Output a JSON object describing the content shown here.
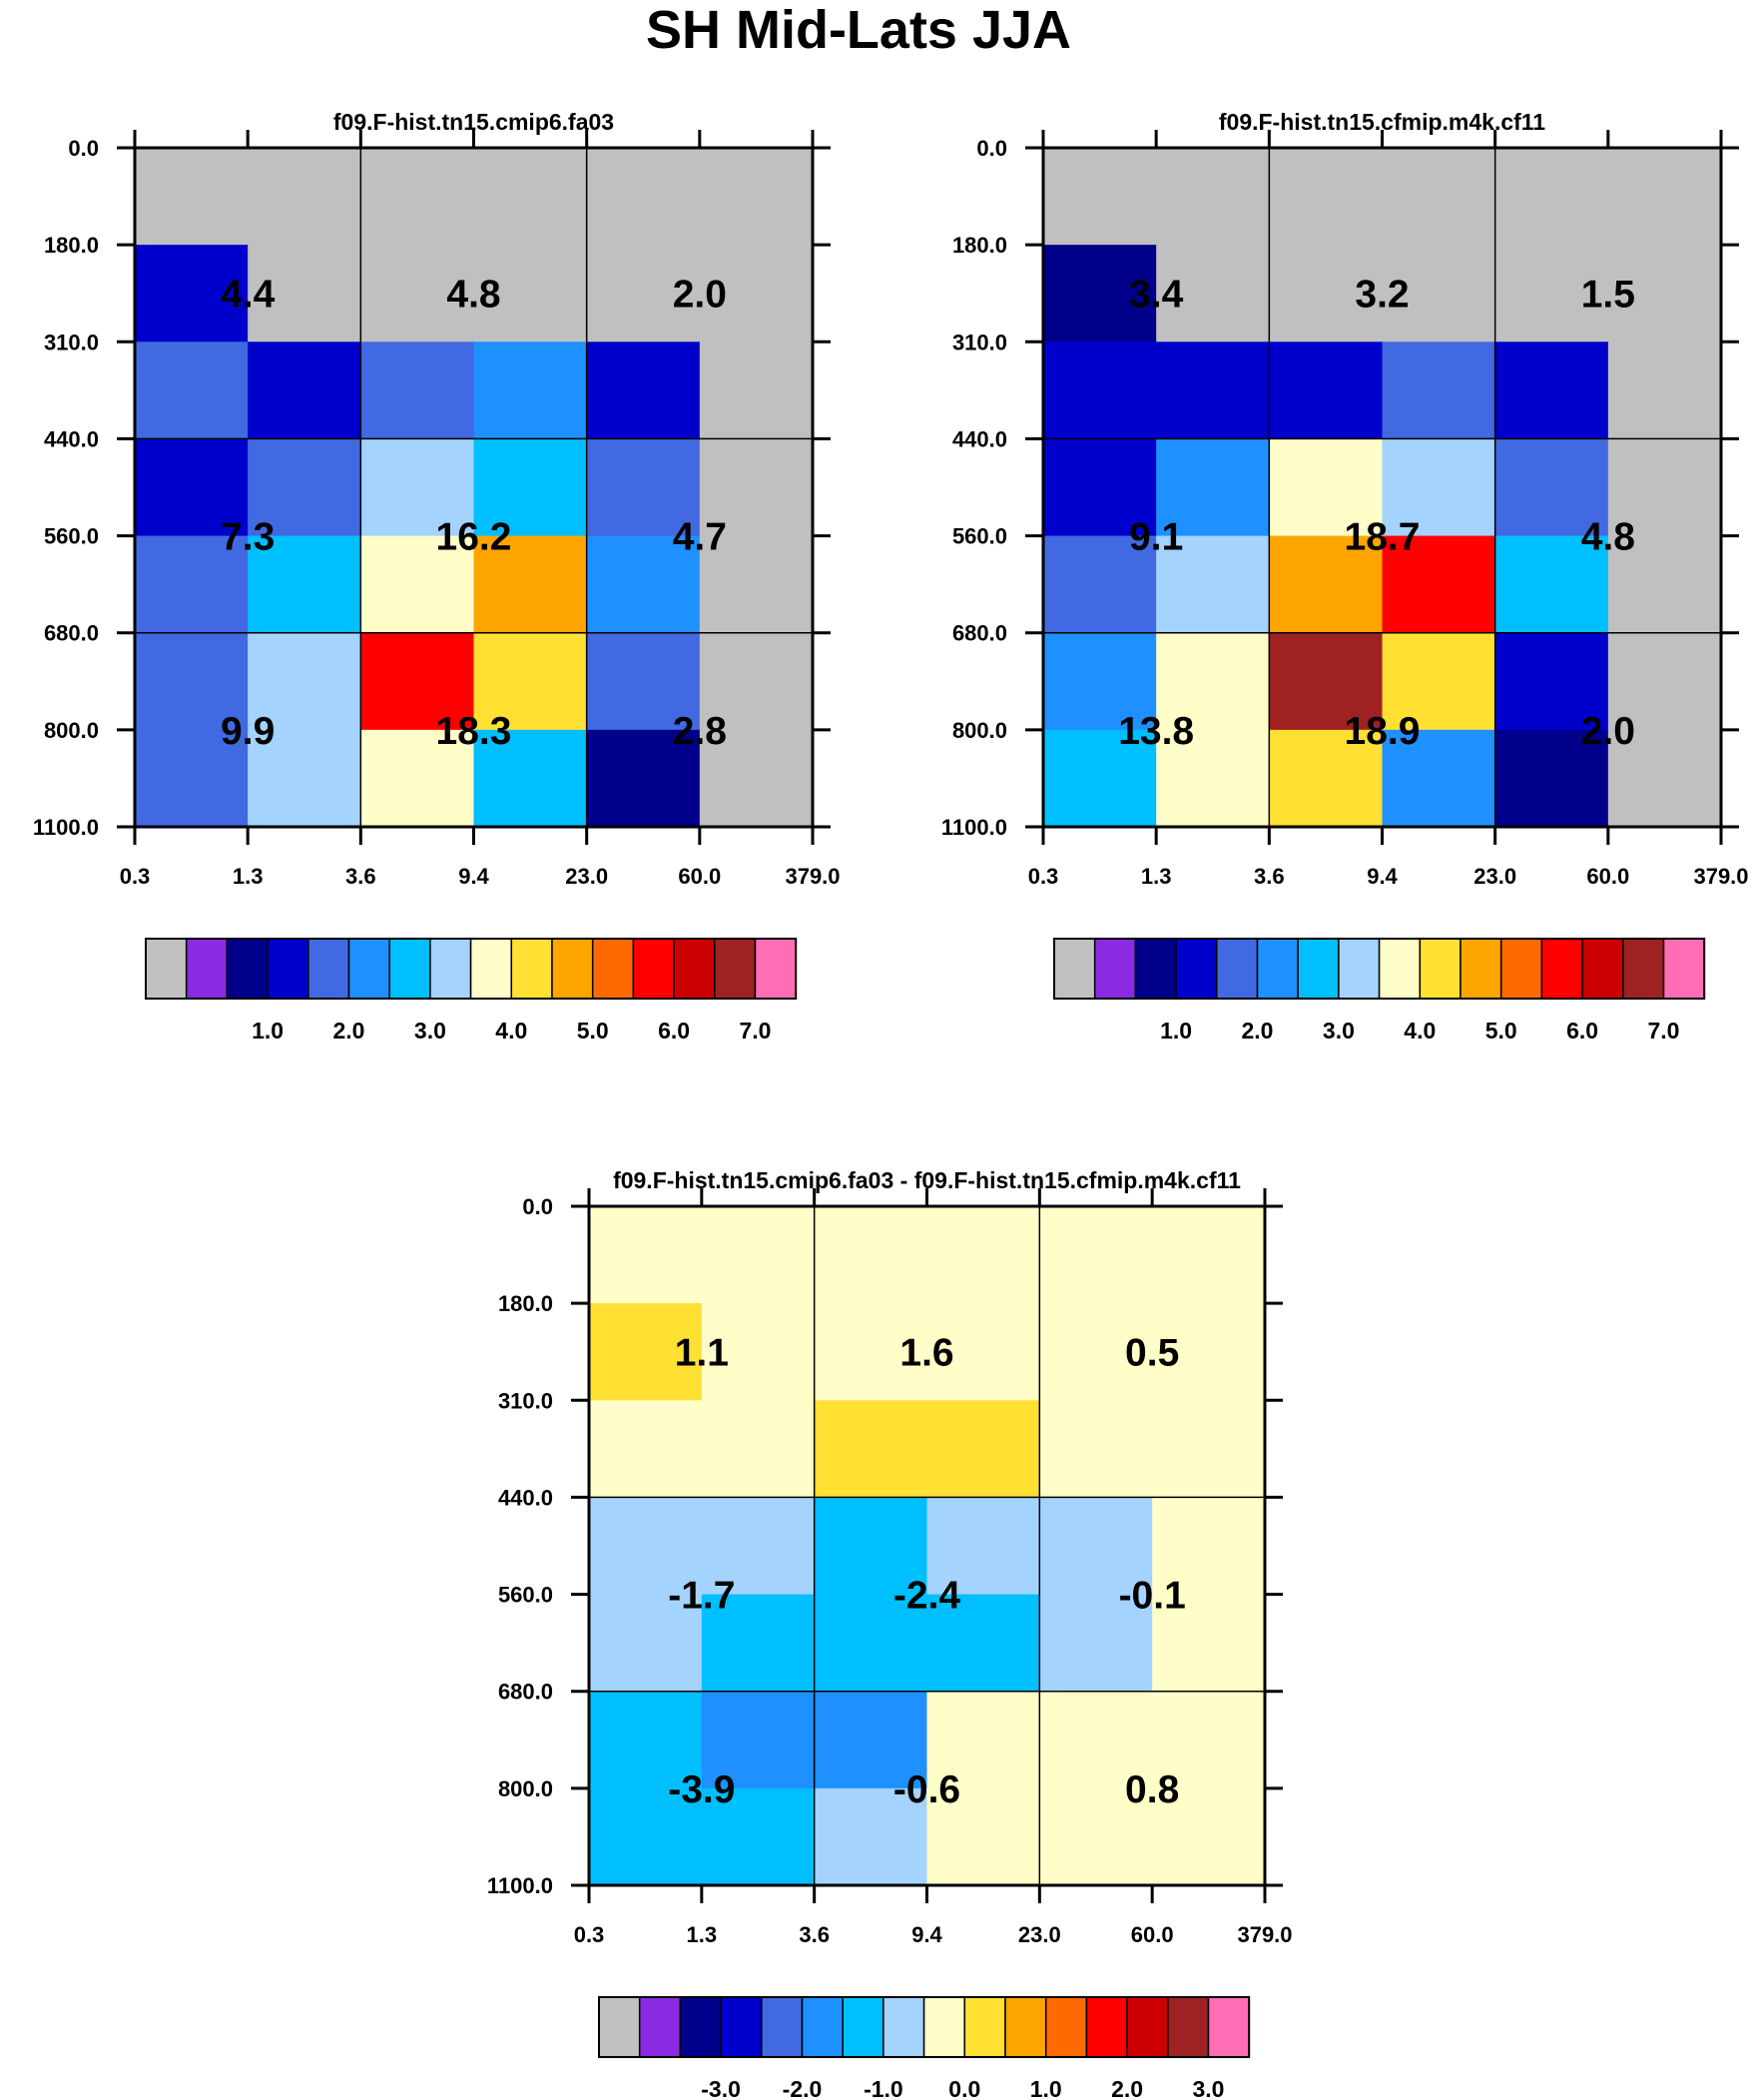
{
  "title": "SH Mid-Lats JJA",
  "chart_data": [
    {
      "type": "heatmap",
      "title": "f09.F-hist.tn15.cmip6.fa03",
      "x_ticks": [
        "0.3",
        "1.3",
        "3.6",
        "9.4",
        "23.0",
        "60.0",
        "379.0"
      ],
      "y_ticks": [
        "0.0",
        "180.0",
        "310.0",
        "440.0",
        "560.0",
        "680.0",
        "800.0",
        "1100.0"
      ],
      "cells": [
        [
          0,
          0,
          0,
          0,
          0,
          0
        ],
        [
          1.75,
          0,
          0,
          0,
          0,
          0
        ],
        [
          2.25,
          1.75,
          2.25,
          2.75,
          1.75,
          0
        ],
        [
          1.75,
          2.25,
          3.75,
          3.25,
          2.25,
          0
        ],
        [
          2.25,
          3.25,
          4.25,
          5.25,
          2.75,
          0
        ],
        [
          2.25,
          3.75,
          6.25,
          4.75,
          2.25,
          0
        ],
        [
          2.25,
          3.75,
          4.25,
          3.25,
          1.25,
          0
        ]
      ],
      "totals": [
        [
          "4.4",
          "4.8",
          "2.0"
        ],
        [
          "7.3",
          "16.2",
          "4.7"
        ],
        [
          "9.9",
          "18.3",
          "2.8"
        ]
      ],
      "colorbar_labels": [
        "1.0",
        "2.0",
        "3.0",
        "4.0",
        "5.0",
        "6.0",
        "7.0"
      ]
    },
    {
      "type": "heatmap",
      "title": "f09.F-hist.tn15.cfmip.m4k.cf11",
      "x_ticks": [
        "0.3",
        "1.3",
        "3.6",
        "9.4",
        "23.0",
        "60.0",
        "379.0"
      ],
      "y_ticks": [
        "0.0",
        "180.0",
        "310.0",
        "440.0",
        "560.0",
        "680.0",
        "800.0",
        "1100.0"
      ],
      "cells": [
        [
          0,
          0,
          0,
          0,
          0,
          0
        ],
        [
          1.25,
          0,
          0,
          0,
          0,
          0
        ],
        [
          1.75,
          1.75,
          1.75,
          2.25,
          1.75,
          0
        ],
        [
          1.75,
          2.75,
          4.25,
          3.75,
          2.25,
          0
        ],
        [
          2.25,
          3.75,
          5.25,
          6.25,
          3.25,
          0
        ],
        [
          2.75,
          4.25,
          7.25,
          4.75,
          1.75,
          0
        ],
        [
          3.25,
          4.25,
          4.75,
          2.75,
          1.25,
          0
        ]
      ],
      "totals": [
        [
          "3.4",
          "3.2",
          "1.5"
        ],
        [
          "9.1",
          "18.7",
          "4.8"
        ],
        [
          "13.8",
          "18.9",
          "2.0"
        ]
      ],
      "colorbar_labels": [
        "1.0",
        "2.0",
        "3.0",
        "4.0",
        "5.0",
        "6.0",
        "7.0"
      ]
    },
    {
      "type": "heatmap",
      "title": "f09.F-hist.tn15.cmip6.fa03 - f09.F-hist.tn15.cfmip.m4k.cf11",
      "x_ticks": [
        "0.3",
        "1.3",
        "3.6",
        "9.4",
        "23.0",
        "60.0",
        "379.0"
      ],
      "y_ticks": [
        "0.0",
        "180.0",
        "310.0",
        "440.0",
        "560.0",
        "680.0",
        "800.0",
        "1100.0"
      ],
      "cells": [
        [
          0.25,
          0.25,
          0.25,
          0.25,
          0.25,
          0.25
        ],
        [
          0.75,
          0.25,
          0.25,
          0.25,
          0.25,
          0.25
        ],
        [
          0.25,
          0.25,
          0.75,
          0.75,
          0.25,
          0.25
        ],
        [
          -0.25,
          -0.25,
          -0.75,
          -0.25,
          -0.25,
          0.25
        ],
        [
          -0.25,
          -0.75,
          -0.75,
          -0.75,
          -0.25,
          0.25
        ],
        [
          -0.75,
          -1.25,
          -1.25,
          0.25,
          0.25,
          0.25
        ],
        [
          -0.75,
          -0.75,
          -0.25,
          0.25,
          0.25,
          0.25
        ]
      ],
      "totals": [
        [
          "1.1",
          "1.6",
          "0.5"
        ],
        [
          "-1.7",
          "-2.4",
          "-0.1"
        ],
        [
          "-3.9",
          "-0.6",
          "0.8"
        ]
      ],
      "colorbar_labels": [
        "-3.0",
        "-2.0",
        "-1.0",
        "0.0",
        "1.0",
        "2.0",
        "3.0"
      ]
    }
  ],
  "palette": {
    "missing": "#c0c0c0",
    "colors": [
      "#8a2be2",
      "#00008b",
      "#0000cd",
      "#4169e1",
      "#1e90ff",
      "#00bfff",
      "#a4d3fe",
      "#fffdc8",
      "#ffe033",
      "#ffa500",
      "#ff6a00",
      "#ff0000",
      "#cd0000",
      "#9e2222",
      "#ff6eb4"
    ]
  }
}
